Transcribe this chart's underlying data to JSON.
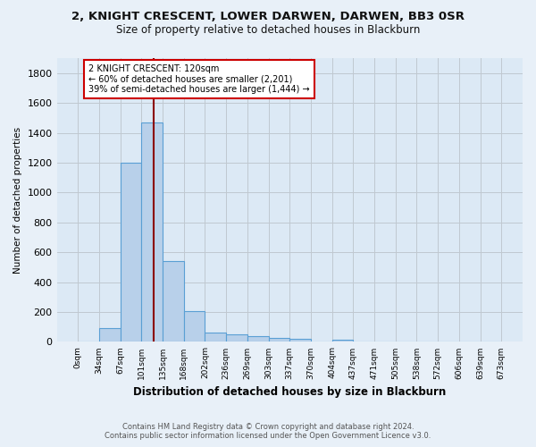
{
  "title": "2, KNIGHT CRESCENT, LOWER DARWEN, DARWEN, BB3 0SR",
  "subtitle": "Size of property relative to detached houses in Blackburn",
  "xlabel": "Distribution of detached houses by size in Blackburn",
  "ylabel": "Number of detached properties",
  "bar_color": "#b8d0ea",
  "bar_edge_color": "#5a9fd4",
  "background_color": "#dce9f5",
  "fig_background_color": "#e8f0f8",
  "grid_color": "#c0c8d0",
  "bins": [
    "0sqm",
    "34sqm",
    "67sqm",
    "101sqm",
    "135sqm",
    "168sqm",
    "202sqm",
    "236sqm",
    "269sqm",
    "303sqm",
    "337sqm",
    "370sqm",
    "404sqm",
    "437sqm",
    "471sqm",
    "505sqm",
    "538sqm",
    "572sqm",
    "606sqm",
    "639sqm",
    "673sqm"
  ],
  "values": [
    0,
    90,
    1200,
    1470,
    540,
    205,
    65,
    48,
    38,
    27,
    20,
    5,
    12,
    0,
    0,
    0,
    0,
    0,
    0,
    0
  ],
  "ylim": [
    0,
    1900
  ],
  "yticks": [
    0,
    200,
    400,
    600,
    800,
    1000,
    1200,
    1400,
    1600,
    1800
  ],
  "marker_line_color": "#8b0000",
  "annotation_text": "2 KNIGHT CRESCENT: 120sqm\n← 60% of detached houses are smaller (2,201)\n39% of semi-detached houses are larger (1,444) →",
  "annotation_box_color": "#ffffff",
  "annotation_box_edge_color": "#cc0000",
  "footer_line1": "Contains HM Land Registry data © Crown copyright and database right 2024.",
  "footer_line2": "Contains public sector information licensed under the Open Government Licence v3.0."
}
